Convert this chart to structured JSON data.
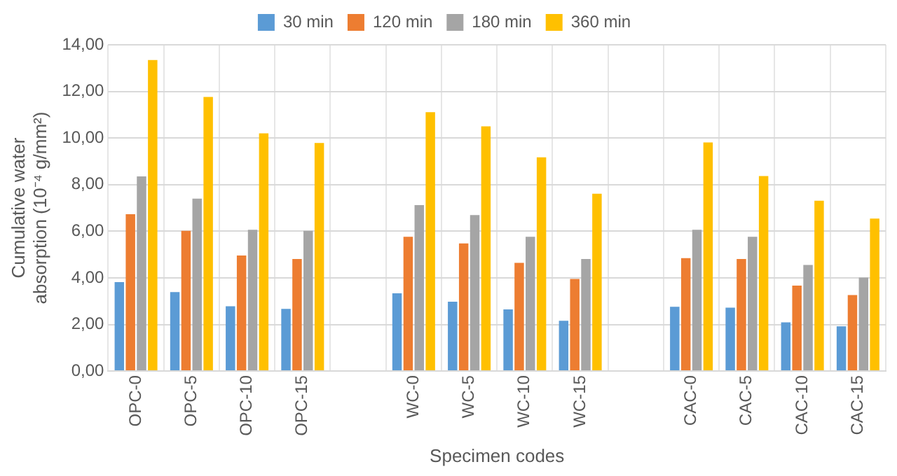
{
  "chart_data": {
    "type": "bar",
    "xlabel": "Specimen codes",
    "ylabel": "Cumulative water absorption (10⁻⁴ g/mm²)",
    "categories": [
      "OPC-0",
      "OPC-5",
      "OPC-10",
      "OPC-15",
      null,
      "WC-0",
      "WC-5",
      "WC-10",
      "WC-15",
      null,
      "CAC-0",
      "CAC-5",
      "CAC-10",
      "CAC-15"
    ],
    "series": [
      {
        "name": "30 min",
        "color": "#5b9bd5",
        "values": [
          3.82,
          3.39,
          2.78,
          2.67,
          null,
          3.34,
          2.98,
          2.65,
          2.16,
          null,
          2.76,
          2.72,
          2.09,
          1.92
        ]
      },
      {
        "name": "120 min",
        "color": "#ed7d31",
        "values": [
          6.73,
          6.02,
          4.96,
          4.81,
          null,
          5.76,
          5.48,
          4.64,
          3.95,
          null,
          4.85,
          4.81,
          3.67,
          3.26
        ]
      },
      {
        "name": "180 min",
        "color": "#a5a5a5",
        "values": [
          8.35,
          7.4,
          6.06,
          6.02,
          null,
          7.12,
          6.69,
          5.76,
          4.81,
          null,
          6.06,
          5.76,
          4.55,
          4.01
        ]
      },
      {
        "name": "360 min",
        "color": "#ffc000",
        "values": [
          13.35,
          11.76,
          10.2,
          9.79,
          null,
          11.11,
          10.5,
          9.17,
          7.61,
          null,
          9.81,
          8.37,
          7.31,
          6.54
        ]
      }
    ],
    "ylim": [
      0,
      14
    ],
    "yticks": [
      {
        "value": 0,
        "label": "0,00"
      },
      {
        "value": 2,
        "label": "2,00"
      },
      {
        "value": 4,
        "label": "4,00"
      },
      {
        "value": 6,
        "label": "6,00"
      },
      {
        "value": 8,
        "label": "8,00"
      },
      {
        "value": 10,
        "label": "10,00"
      },
      {
        "value": 12,
        "label": "12,00"
      },
      {
        "value": 14,
        "label": "14,00"
      }
    ],
    "grid": true,
    "legend": "top"
  }
}
